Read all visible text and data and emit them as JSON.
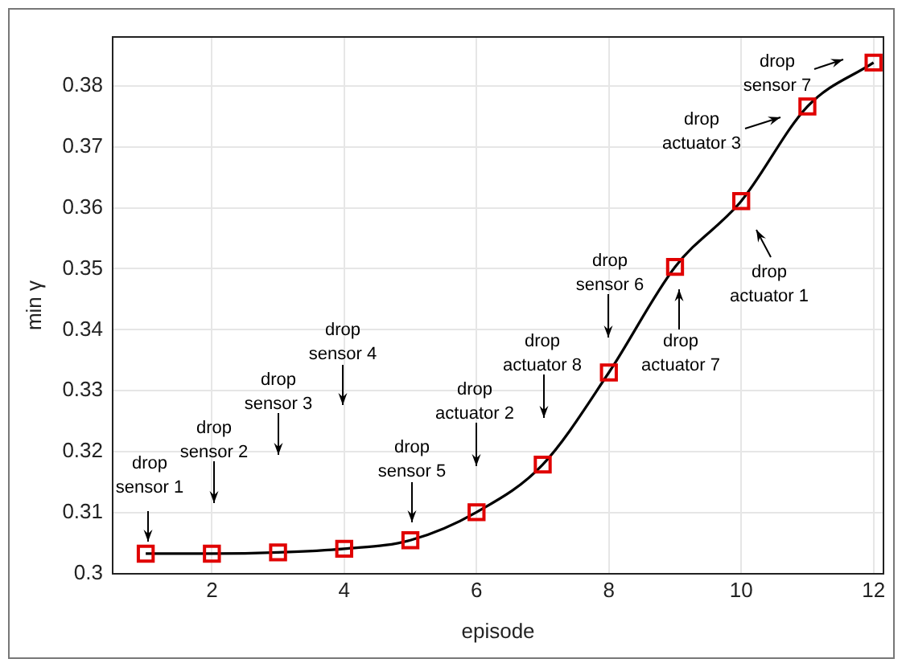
{
  "chart_data": {
    "type": "line",
    "xlabel": "episode",
    "ylabel": "min γ",
    "x": [
      1,
      2,
      3,
      4,
      5,
      6,
      7,
      8,
      9,
      10,
      11,
      12
    ],
    "series": [
      {
        "color": "#000000",
        "colors": [
          "#e00000",
          "#e00000",
          "#e00000",
          "#e00000",
          "#e00000",
          "#e00000",
          "#e00000",
          "#e00000",
          "#e00000",
          "#e00000",
          "#e00000",
          "#e00000"
        ],
        "values": [
          0.3033,
          0.3033,
          0.3035,
          0.3041,
          0.3055,
          0.3101,
          0.3179,
          0.333,
          0.3503,
          0.3611,
          0.3766,
          0.3838
        ]
      }
    ],
    "xlim": [
      0.5,
      12.15
    ],
    "xticks": [
      2,
      4,
      6,
      8,
      10,
      12
    ],
    "ylim": [
      0.3,
      0.388
    ],
    "yticks": [
      0.3,
      0.31,
      0.32,
      0.33,
      0.34,
      0.35,
      0.36,
      0.37,
      0.38
    ],
    "grid": true,
    "legend": false,
    "marker": "square",
    "line_style": "solid",
    "annotations": [
      "drop\nsensor 1",
      "drop\nsensor 2",
      "drop\nsensor 3",
      "drop\nsensor 4",
      "drop\nsensor 5",
      "drop\nactuator 2",
      "drop\nactuator 8",
      "drop\nsensor 6",
      "drop\nactuator 7",
      "drop\nactuator 1",
      "drop\nactuator 3",
      "drop\nsensor 7"
    ]
  }
}
